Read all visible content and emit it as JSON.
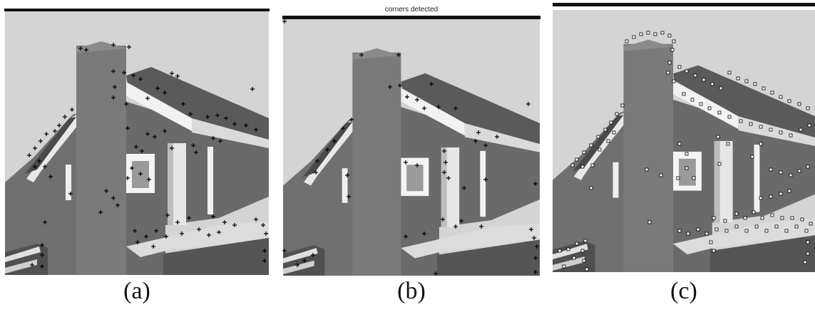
{
  "figure": {
    "panels": [
      {
        "id": "a",
        "caption": "(a)",
        "title": "",
        "marker": "plus",
        "marker_color": "#000000"
      },
      {
        "id": "b",
        "caption": "(b)",
        "title": "corners detected",
        "marker": "plus",
        "marker_color": "#000000"
      },
      {
        "id": "c",
        "caption": "(c)",
        "title": "",
        "marker": "square",
        "marker_color": "#ffffff"
      }
    ]
  }
}
